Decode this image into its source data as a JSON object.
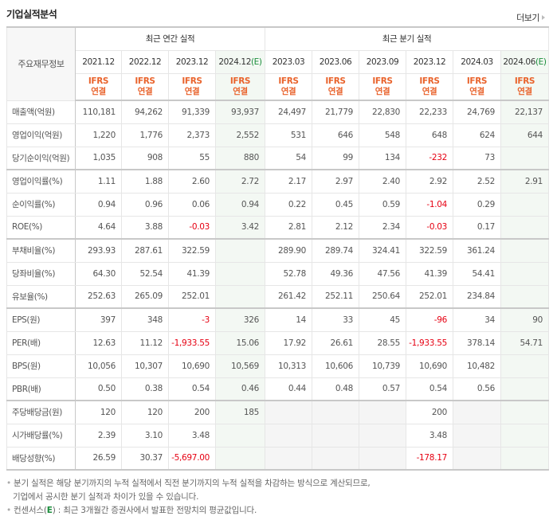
{
  "header": {
    "title": "기업실적분석",
    "more_label": "더보기"
  },
  "table": {
    "corner_label": "주요재무정보",
    "groups": {
      "annual": "최근 연간 실적",
      "quarterly": "최근 분기 실적"
    },
    "annual_periods": [
      {
        "date": "2021.12",
        "est": ""
      },
      {
        "date": "2022.12",
        "est": ""
      },
      {
        "date": "2023.12",
        "est": ""
      },
      {
        "date": "2024.12",
        "est": "(E)"
      }
    ],
    "quarterly_periods": [
      {
        "date": "2023.03",
        "est": ""
      },
      {
        "date": "2023.06",
        "est": ""
      },
      {
        "date": "2023.09",
        "est": ""
      },
      {
        "date": "2023.12",
        "est": ""
      },
      {
        "date": "2024.03",
        "est": ""
      },
      {
        "date": "2024.06",
        "est": "(E)"
      }
    ],
    "ifrs_line1": "IFRS",
    "ifrs_line2": "연결",
    "rows": [
      {
        "label": "매출액(억원)",
        "group_start": false,
        "values": [
          "110,181",
          "94,262",
          "91,339",
          "93,937",
          "24,497",
          "21,779",
          "22,830",
          "22,233",
          "24,769",
          "22,137"
        ]
      },
      {
        "label": "영업이익(억원)",
        "group_start": false,
        "values": [
          "1,220",
          "1,776",
          "2,373",
          "2,552",
          "531",
          "646",
          "548",
          "648",
          "624",
          "644"
        ]
      },
      {
        "label": "당기순이익(억원)",
        "group_start": false,
        "values": [
          "1,035",
          "908",
          "55",
          "880",
          "54",
          "99",
          "134",
          "-232",
          "73",
          ""
        ]
      },
      {
        "label": "영업이익률(%)",
        "group_start": true,
        "values": [
          "1.11",
          "1.88",
          "2.60",
          "2.72",
          "2.17",
          "2.97",
          "2.40",
          "2.92",
          "2.52",
          "2.91"
        ]
      },
      {
        "label": "순이익률(%)",
        "group_start": false,
        "values": [
          "0.94",
          "0.96",
          "0.06",
          "0.94",
          "0.22",
          "0.45",
          "0.59",
          "-1.04",
          "0.29",
          ""
        ]
      },
      {
        "label": "ROE(%)",
        "group_start": false,
        "values": [
          "4.64",
          "3.88",
          "-0.03",
          "3.42",
          "2.81",
          "2.12",
          "2.34",
          "-0.03",
          "0.17",
          ""
        ]
      },
      {
        "label": "부채비율(%)",
        "group_start": true,
        "values": [
          "293.93",
          "287.61",
          "322.59",
          "",
          "289.90",
          "289.74",
          "324.41",
          "322.59",
          "361.24",
          ""
        ]
      },
      {
        "label": "당좌비율(%)",
        "group_start": false,
        "values": [
          "64.30",
          "52.54",
          "41.39",
          "",
          "52.78",
          "49.36",
          "47.56",
          "41.39",
          "54.41",
          ""
        ]
      },
      {
        "label": "유보율(%)",
        "group_start": false,
        "values": [
          "252.63",
          "265.09",
          "252.01",
          "",
          "261.42",
          "252.11",
          "250.64",
          "252.01",
          "234.84",
          ""
        ]
      },
      {
        "label": "EPS(원)",
        "group_start": true,
        "values": [
          "397",
          "348",
          "-3",
          "326",
          "14",
          "33",
          "45",
          "-96",
          "34",
          "90"
        ]
      },
      {
        "label": "PER(배)",
        "group_start": false,
        "values": [
          "12.63",
          "11.12",
          "-1,933.55",
          "15.06",
          "17.92",
          "26.61",
          "28.55",
          "-1,933.55",
          "378.14",
          "54.71"
        ]
      },
      {
        "label": "BPS(원)",
        "group_start": false,
        "values": [
          "10,056",
          "10,307",
          "10,690",
          "10,569",
          "10,313",
          "10,606",
          "10,739",
          "10,690",
          "10,482",
          ""
        ]
      },
      {
        "label": "PBR(배)",
        "group_start": false,
        "values": [
          "0.50",
          "0.38",
          "0.54",
          "0.46",
          "0.44",
          "0.48",
          "0.57",
          "0.54",
          "0.56",
          ""
        ]
      },
      {
        "label": "주당배당금(원)",
        "group_start": true,
        "na_cols": [
          4,
          5,
          6,
          8
        ],
        "values": [
          "120",
          "120",
          "200",
          "185",
          "",
          "",
          "",
          "200",
          "",
          ""
        ]
      },
      {
        "label": "시가배당률(%)",
        "group_start": false,
        "na_cols": [
          4,
          5,
          6,
          8
        ],
        "values": [
          "2.39",
          "3.10",
          "3.48",
          "",
          "",
          "",
          "",
          "3.48",
          "",
          ""
        ]
      },
      {
        "label": "배당성향(%)",
        "group_start": false,
        "na_cols": [
          4,
          5,
          6,
          8
        ],
        "values": [
          "26.59",
          "30.37",
          "-5,697.00",
          "",
          "",
          "",
          "",
          "-178.17",
          "",
          ""
        ]
      }
    ]
  },
  "notes": {
    "line1": "분기 실적은 해당 분기까지의 누적 실적에서 직전 분기까지의 누적 실적을 차감하는 방식으로 계산되므로,",
    "line2": "기업에서 공시한 분기 실적과 차이가 있을 수 있습니다.",
    "line3_prefix": "컨센서스(",
    "line3_e": "E",
    "line3_suffix": ") : 최근 3개월간 증권사에서 발표한 전망치의 평균값입니다."
  },
  "colors": {
    "ifrs": "#e9632c",
    "negative": "#e60012",
    "estimate": "#1a8d3b",
    "estimate_bg": "#f3f8f3",
    "na_bg": "#f5f5f5"
  }
}
